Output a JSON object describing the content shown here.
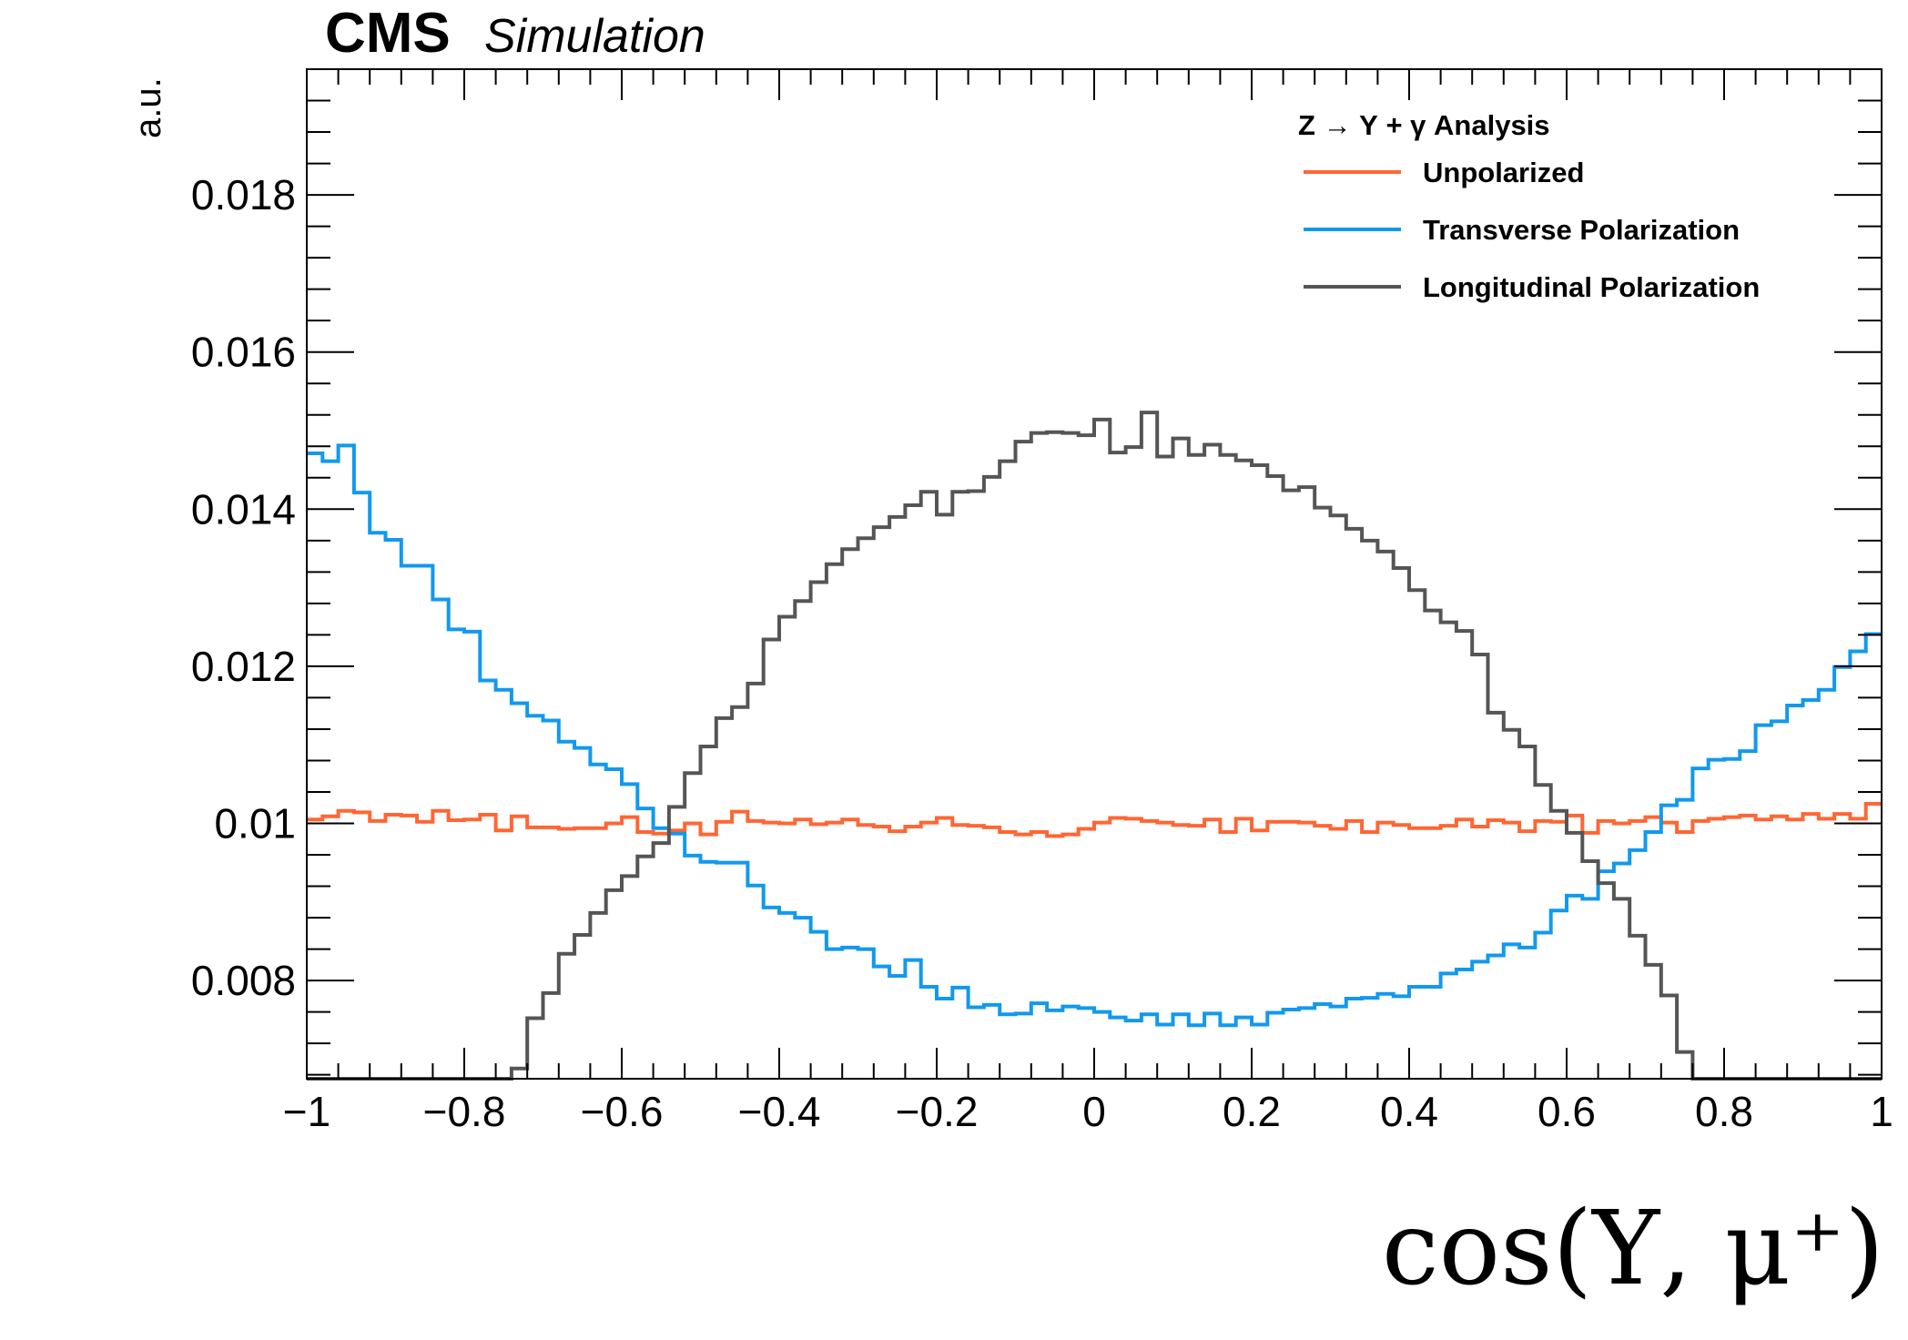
{
  "header": {
    "experiment": "CMS",
    "status": "Simulation"
  },
  "legend": {
    "title": "Z → Υ + γ Analysis",
    "placement": "top-right"
  },
  "chart_data": {
    "type": "line",
    "xlabel": "cos(Υ, μ⁺)",
    "ylabel": "a.u.",
    "xlim": [
      -1,
      1
    ],
    "ylim": [
      0.00675,
      0.0196
    ],
    "x_ticks": [
      -1,
      -0.8,
      -0.6,
      -0.4,
      -0.2,
      0,
      0.2,
      0.4,
      0.6,
      0.8,
      1
    ],
    "x_tick_labels": [
      "−1",
      "−0.8",
      "−0.6",
      "−0.4",
      "−0.2",
      "0",
      "0.2",
      "0.4",
      "0.6",
      "0.8",
      "1"
    ],
    "y_ticks": [
      0.008,
      0.01,
      0.012,
      0.014,
      0.016,
      0.018
    ],
    "y_tick_labels": [
      "0.008",
      "0.01",
      "0.012",
      "0.014",
      "0.016",
      "0.018"
    ],
    "grid": false,
    "bin_edges_range": [
      -1,
      1
    ],
    "bins": 100,
    "series": [
      {
        "name": "Unpolarized",
        "color": "#ff6633",
        "values": [
          0.01005,
          0.01009,
          0.01016,
          0.01014,
          0.01003,
          0.01011,
          0.0101,
          0.01002,
          0.01016,
          0.01004,
          0.01005,
          0.01011,
          0.00991,
          0.01009,
          0.00995,
          0.00995,
          0.00993,
          0.00994,
          0.00994,
          0.01,
          0.01008,
          0.00989,
          0.00987,
          0.00991,
          0.01,
          0.00986,
          0.01002,
          0.01015,
          0.01003,
          0.01001,
          0.01,
          0.01005,
          0.00999,
          0.01001,
          0.01005,
          0.00998,
          0.00996,
          0.0099,
          0.00996,
          0.01001,
          0.01007,
          0.00998,
          0.00997,
          0.00995,
          0.00989,
          0.00986,
          0.00989,
          0.00984,
          0.00986,
          0.00993,
          0.01001,
          0.01007,
          0.01006,
          0.01003,
          0.01001,
          0.00998,
          0.00997,
          0.01005,
          0.00989,
          0.01006,
          0.00991,
          0.01002,
          0.01002,
          0.01001,
          0.00997,
          0.00993,
          0.01003,
          0.00989,
          0.01001,
          0.00998,
          0.00994,
          0.00994,
          0.00997,
          0.01005,
          0.00996,
          0.01004,
          0.01001,
          0.0099,
          0.01003,
          0.01002,
          0.0101,
          0.00988,
          0.01003,
          0.01,
          0.01003,
          0.01008,
          0.01001,
          0.00989,
          0.01003,
          0.01006,
          0.01008,
          0.0101,
          0.01005,
          0.01009,
          0.01005,
          0.01012,
          0.01006,
          0.01012,
          0.01006,
          0.01025
        ]
      },
      {
        "name": "Transverse Polarization",
        "color": "#1199ee",
        "values": [
          0.01471,
          0.01461,
          0.01481,
          0.01421,
          0.0137,
          0.01361,
          0.01328,
          0.01328,
          0.01285,
          0.01247,
          0.01244,
          0.01182,
          0.0117,
          0.01153,
          0.01137,
          0.01131,
          0.01104,
          0.01096,
          0.01075,
          0.01069,
          0.0105,
          0.01019,
          0.00994,
          0.00987,
          0.00959,
          0.00951,
          0.0095,
          0.0095,
          0.00921,
          0.00893,
          0.00886,
          0.0088,
          0.00862,
          0.0084,
          0.00842,
          0.0084,
          0.00818,
          0.00806,
          0.00826,
          0.00792,
          0.00777,
          0.00791,
          0.00766,
          0.00769,
          0.00757,
          0.00758,
          0.00771,
          0.00762,
          0.00767,
          0.00765,
          0.0076,
          0.00753,
          0.00749,
          0.00757,
          0.00744,
          0.00757,
          0.00743,
          0.00758,
          0.00743,
          0.00753,
          0.00744,
          0.00759,
          0.00763,
          0.00765,
          0.0077,
          0.00767,
          0.00777,
          0.00778,
          0.00783,
          0.0078,
          0.00792,
          0.00792,
          0.00809,
          0.00814,
          0.00824,
          0.00832,
          0.00846,
          0.00842,
          0.00861,
          0.00889,
          0.00908,
          0.00904,
          0.00939,
          0.00949,
          0.00966,
          0.00989,
          0.01023,
          0.0103,
          0.0107,
          0.01081,
          0.01082,
          0.01092,
          0.01125,
          0.0113,
          0.0115,
          0.01157,
          0.0117,
          0.01199,
          0.01219,
          0.01241
        ]
      },
      {
        "name": "Longitudinal Polarization",
        "color": "#555555",
        "values": [
          0.00675,
          0.00675,
          0.00675,
          0.00675,
          0.00675,
          0.00675,
          0.00675,
          0.00675,
          0.00675,
          0.00675,
          0.00675,
          0.00675,
          0.00675,
          0.00688,
          0.00752,
          0.00784,
          0.00834,
          0.00858,
          0.00886,
          0.00915,
          0.00933,
          0.00958,
          0.00975,
          0.01021,
          0.01064,
          0.01098,
          0.01134,
          0.01148,
          0.01178,
          0.01234,
          0.01263,
          0.01283,
          0.01307,
          0.0133,
          0.01349,
          0.01363,
          0.01377,
          0.0139,
          0.01405,
          0.01422,
          0.01393,
          0.01422,
          0.01423,
          0.01441,
          0.01461,
          0.01486,
          0.01497,
          0.01498,
          0.01497,
          0.01494,
          0.01514,
          0.01472,
          0.01479,
          0.01523,
          0.01467,
          0.0149,
          0.01469,
          0.01482,
          0.01469,
          0.01462,
          0.01456,
          0.01442,
          0.01424,
          0.01428,
          0.01402,
          0.01392,
          0.01375,
          0.0136,
          0.01346,
          0.01325,
          0.01297,
          0.01271,
          0.01256,
          0.01245,
          0.01215,
          0.01141,
          0.01119,
          0.01098,
          0.01049,
          0.01016,
          0.00988,
          0.00952,
          0.00924,
          0.00904,
          0.00857,
          0.0082,
          0.00781,
          0.00709,
          0.00675,
          0.00675,
          0.00675,
          0.00675,
          0.00675,
          0.00675,
          0.00675,
          0.00675,
          0.00675,
          0.00675,
          0.00675,
          0.00675
        ]
      }
    ]
  }
}
